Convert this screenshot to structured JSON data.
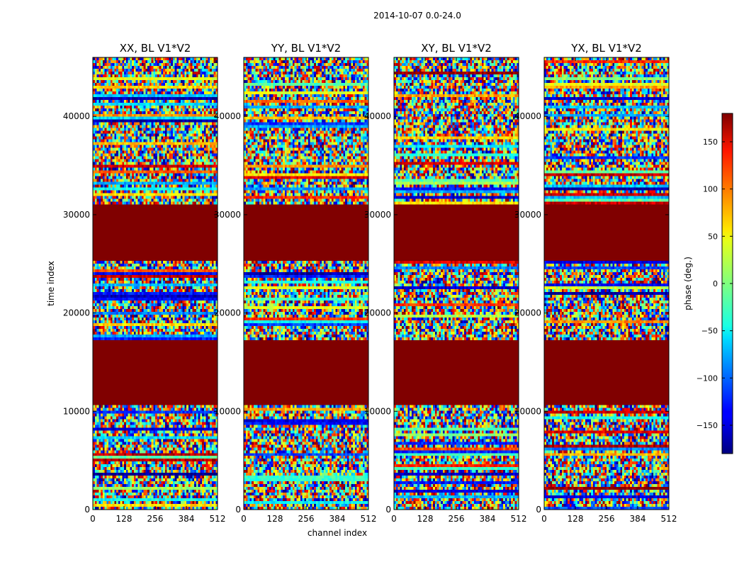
{
  "figure": {
    "suptitle": "2014-10-07 0.0-24.0"
  },
  "chart_data": {
    "type": "heatmap",
    "title": "2014-10-07 0.0-24.0",
    "xlabel": "channel index",
    "ylabel": "time index",
    "xlim": [
      0,
      512
    ],
    "ylim": [
      0,
      46000
    ],
    "x_ticks": [
      0,
      128,
      256,
      384,
      512
    ],
    "y_ticks": [
      0,
      10000,
      20000,
      30000,
      40000
    ],
    "panels": [
      {
        "title": "XX, BL V1*V2",
        "pol": "XX"
      },
      {
        "title": "YY, BL V1*V2",
        "pol": "YY"
      },
      {
        "title": "XY, BL V1*V2",
        "pol": "XY"
      },
      {
        "title": "YX, BL V1*V2",
        "pol": "YX"
      }
    ],
    "flagged_time_ranges": [
      [
        10500,
        17300
      ],
      [
        25300,
        31100
      ]
    ],
    "flag_value": 180,
    "colorbar": {
      "label": "phase (deg.)",
      "range": [
        -180,
        180
      ],
      "ticks": [
        -150,
        -100,
        -50,
        0,
        50,
        100,
        150
      ],
      "colormap": "jet"
    }
  }
}
